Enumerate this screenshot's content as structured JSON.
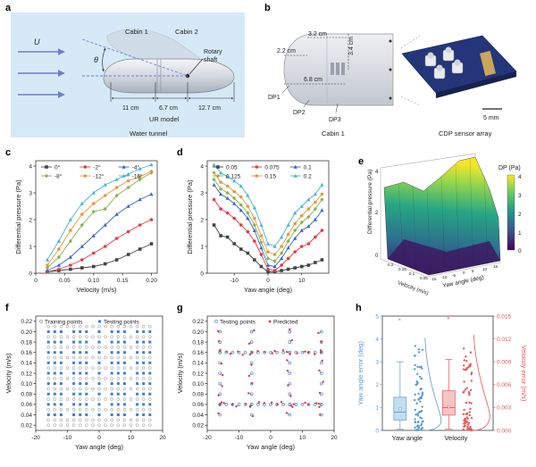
{
  "panel_a": {
    "letter": "a",
    "velocity_symbol": "U",
    "angle_symbol": "θ",
    "cabin1": "Cabin 1",
    "cabin2": "Cabin 2",
    "rotary": "Rotary",
    "shaft": "shaft",
    "dim1": "11 cm",
    "dim2": "6.7 cm",
    "dim3": "12.7 cm",
    "model": "UR model",
    "tunnel": "Water tunnel",
    "colors": {
      "bg": "#d6e9f6",
      "arrow": "#6d7fc6"
    }
  },
  "panel_b": {
    "letter": "b",
    "d1": "2.2 cm",
    "d2": "3.2 cm",
    "d3": "3.4 cm",
    "d4": "6.8 cm",
    "dp1": "DP1",
    "dp2": "DP2",
    "dp3": "DP3",
    "caption1": "Cabin 1",
    "scale": "5 mm",
    "caption2": "CDP sensor array"
  },
  "panel_e": {
    "letter": "e",
    "colorbar_title": "DP (Pa)",
    "colorbar_ticks": [
      "4",
      "3",
      "2",
      "1",
      "0"
    ],
    "zlabel": "Differential pressure (Pa)",
    "xlabel": "Yaw angle (deg)",
    "ylabel": "Velocity (m/s)",
    "z_ticks": [
      "4",
      "2",
      "0"
    ],
    "x_ticks": [
      "-15",
      "-10",
      "-5",
      "0",
      "5",
      "10",
      "15"
    ],
    "y_ticks": [
      "0.2",
      "0.15",
      "0.1",
      "0.05"
    ]
  },
  "panel_h": {
    "box_colors": [
      "#5b9bd5",
      "#e8575c"
    ]
  },
  "chart_data": [
    {
      "id": "c",
      "type": "line",
      "letter": "c",
      "xlabel": "Velocity (m/s)",
      "ylabel": "Differential pressure (Pa)",
      "xlim": [
        0,
        0.21
      ],
      "ylim": [
        0,
        4.2
      ],
      "xticks": [
        "0",
        "0.05",
        "0.10",
        "0.15",
        "0.20"
      ],
      "yticks": [
        "0",
        "1",
        "2",
        "3",
        "4"
      ],
      "x": [
        0.02,
        0.04,
        0.06,
        0.08,
        0.1,
        0.12,
        0.14,
        0.16,
        0.18,
        0.2
      ],
      "series": [
        {
          "name": "0°",
          "color": "#444444",
          "marker": "square",
          "values": [
            0.05,
            0.1,
            0.15,
            0.2,
            0.25,
            0.35,
            0.5,
            0.7,
            0.9,
            1.1
          ]
        },
        {
          "name": "-2°",
          "color": "#e8393f",
          "marker": "circle",
          "values": [
            0.05,
            0.15,
            0.3,
            0.5,
            0.75,
            1.0,
            1.3,
            1.55,
            1.8,
            2.0
          ]
        },
        {
          "name": "-4°",
          "color": "#3366cc",
          "marker": "triangle",
          "values": [
            0.1,
            0.3,
            0.6,
            1.0,
            1.4,
            1.8,
            2.2,
            2.5,
            2.75,
            2.95
          ]
        },
        {
          "name": "-8°",
          "color": "#8ab04e",
          "marker": "diamond",
          "values": [
            0.2,
            0.6,
            1.2,
            1.8,
            2.3,
            2.4,
            2.9,
            3.2,
            3.5,
            3.75
          ]
        },
        {
          "name": "-12°",
          "color": "#e29a3c",
          "marker": "circle",
          "values": [
            0.3,
            0.9,
            1.6,
            2.2,
            2.6,
            2.9,
            3.2,
            3.45,
            3.6,
            3.8
          ]
        },
        {
          "name": "-16°",
          "color": "#47b5d3",
          "marker": "triangle",
          "values": [
            0.5,
            1.2,
            2.0,
            2.6,
            3.0,
            3.3,
            3.5,
            3.7,
            3.9,
            4.05
          ]
        }
      ]
    },
    {
      "id": "d",
      "type": "line",
      "letter": "d",
      "xlabel": "Yaw angle (deg)",
      "ylabel": "Differential pressure (Pa)",
      "xlim": [
        -18,
        18
      ],
      "ylim": [
        0,
        4.2
      ],
      "xticks": [
        "-10",
        "0",
        "10"
      ],
      "xtickvals": [
        -10,
        0,
        10
      ],
      "yticks": [
        "0",
        "1",
        "2",
        "3",
        "4"
      ],
      "x": [
        -16,
        -14,
        -12,
        -10,
        -8,
        -6,
        -4,
        -2,
        0,
        2,
        4,
        6,
        8,
        10,
        12,
        14,
        16
      ],
      "series": [
        {
          "name": "0.05",
          "color": "#444444",
          "marker": "square",
          "values": [
            1.8,
            1.4,
            1.35,
            1.1,
            0.9,
            0.75,
            0.5,
            0.25,
            0.05,
            0.05,
            0.1,
            0.15,
            0.2,
            0.25,
            0.3,
            0.4,
            0.5
          ]
        },
        {
          "name": "0.075",
          "color": "#e8393f",
          "marker": "circle",
          "values": [
            2.75,
            2.4,
            2.25,
            2.05,
            1.8,
            1.55,
            1.2,
            0.7,
            0.15,
            0.1,
            0.3,
            0.55,
            0.8,
            1.0,
            1.1,
            1.35,
            1.6
          ]
        },
        {
          "name": "0.1",
          "color": "#3366cc",
          "marker": "triangle",
          "values": [
            3.3,
            2.95,
            2.8,
            2.6,
            2.35,
            2.05,
            1.6,
            0.95,
            0.3,
            0.25,
            0.55,
            0.95,
            1.3,
            1.6,
            1.75,
            2.0,
            2.35
          ]
        },
        {
          "name": "0.125",
          "color": "#8ab04e",
          "marker": "diamond",
          "values": [
            3.5,
            3.15,
            3.0,
            2.8,
            2.55,
            2.25,
            1.8,
            1.15,
            0.55,
            0.45,
            0.75,
            1.2,
            1.6,
            1.9,
            2.1,
            2.4,
            2.75
          ]
        },
        {
          "name": "0.15",
          "color": "#e29a3c",
          "marker": "circle",
          "values": [
            3.75,
            3.4,
            3.25,
            3.05,
            2.85,
            2.5,
            2.05,
            1.4,
            0.8,
            0.7,
            1.0,
            1.45,
            1.85,
            2.15,
            2.4,
            2.65,
            2.95
          ]
        },
        {
          "name": "0.2",
          "color": "#47b5d3",
          "marker": "triangle",
          "values": [
            4.05,
            3.75,
            3.6,
            3.45,
            3.25,
            2.9,
            2.45,
            1.8,
            1.1,
            1.0,
            1.35,
            1.8,
            2.25,
            2.5,
            2.75,
            2.95,
            3.3
          ]
        }
      ]
    },
    {
      "id": "f",
      "type": "scatter",
      "letter": "f",
      "xlabel": "Yaw angle (deg)",
      "ylabel": "Velocity (m/s)",
      "xlim": [
        -20,
        20
      ],
      "ylim": [
        0.01,
        0.23
      ],
      "xticks": [
        "-20",
        "-10",
        "0",
        "10",
        "20"
      ],
      "xtickvals": [
        -20,
        -10,
        0,
        10,
        20
      ],
      "yticks": [
        "0.02",
        "0.04",
        "0.06",
        "0.08",
        "0.10",
        "0.12",
        "0.14",
        "0.16",
        "0.18",
        "0.20",
        "0.22"
      ],
      "ytickvals": [
        0.02,
        0.04,
        0.06,
        0.08,
        0.1,
        0.12,
        0.14,
        0.16,
        0.18,
        0.2,
        0.22
      ],
      "legend": [
        "Training points",
        "Testing points"
      ],
      "grid_x": [
        -16,
        -14,
        -12,
        -10,
        -8,
        -6,
        -4,
        -2,
        0,
        2,
        4,
        6,
        8,
        10,
        12,
        14,
        16
      ],
      "training_rows": [
        0.02,
        0.03,
        0.05,
        0.07,
        0.09,
        0.11,
        0.13,
        0.15,
        0.17,
        0.19,
        0.21
      ],
      "testing_rows": [
        0.04,
        0.06,
        0.08,
        0.1,
        0.12,
        0.14,
        0.16,
        0.18,
        0.2
      ]
    },
    {
      "id": "g",
      "type": "scatter",
      "letter": "g",
      "xlabel": "Yaw angle (deg)",
      "ylabel": "Velocity (m/s)",
      "xlim": [
        -20,
        20
      ],
      "ylim": [
        0.01,
        0.23
      ],
      "xticks": [
        "-20",
        "-10",
        "0",
        "10",
        "20"
      ],
      "xtickvals": [
        -20,
        -10,
        0,
        10,
        20
      ],
      "yticks": [
        "0.02",
        "0.04",
        "0.06",
        "0.08",
        "0.10",
        "0.12",
        "0.14",
        "0.16",
        "0.18",
        "0.20",
        "0.22"
      ],
      "ytickvals": [
        0.02,
        0.04,
        0.06,
        0.08,
        0.1,
        0.12,
        0.14,
        0.16,
        0.18,
        0.2,
        0.22
      ],
      "legend": [
        "Testing points",
        "Predicted"
      ],
      "grid_x": [
        -16,
        -14,
        -12,
        -10,
        -8,
        -6,
        -4,
        -2,
        0,
        2,
        4,
        6,
        8,
        10,
        12,
        14,
        16
      ],
      "rows": [
        0.06,
        0.16
      ],
      "cols": [
        -16,
        -6,
        6,
        16
      ]
    },
    {
      "id": "h",
      "type": "box",
      "letter": "h",
      "categories": [
        "Yaw angle",
        "Velocity"
      ],
      "ylabel_left": "Yaw angle error (deg)",
      "ylabel_right": "Velocity error (m/s)",
      "left_ylim": [
        0,
        5
      ],
      "left_yticks": [
        "0",
        "1",
        "2",
        "3",
        "4",
        "5"
      ],
      "right_ylim": [
        0,
        0.015
      ],
      "right_yticks": [
        "0.000",
        "0.003",
        "0.006",
        "0.009",
        "0.012",
        "0.015"
      ],
      "boxes": [
        {
          "name": "Yaw angle",
          "min": 0.05,
          "q1": 0.45,
          "median": 0.8,
          "q3": 1.45,
          "max": 3.0,
          "mean": 0.95,
          "outlier": 4.85
        },
        {
          "name": "Velocity",
          "min": 0.0002,
          "q1": 0.002,
          "median": 0.003,
          "q3": 0.0052,
          "max": 0.0093,
          "mean": 0.0031,
          "outlier": 0.0147
        }
      ]
    }
  ]
}
